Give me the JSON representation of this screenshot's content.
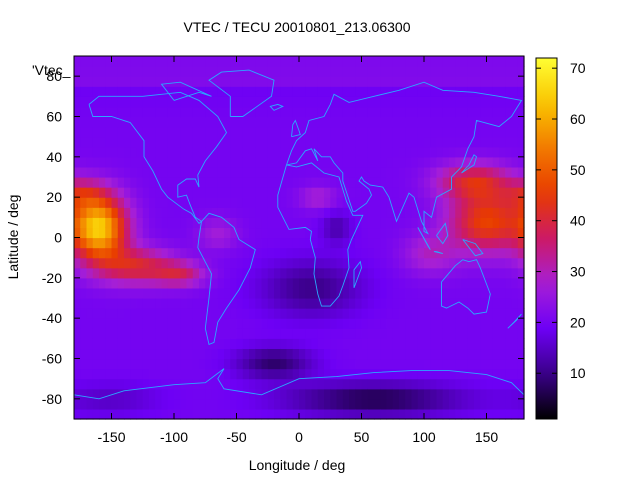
{
  "chart_data": {
    "type": "heatmap",
    "title": "VTEC / TECU 20010801_213.06300",
    "xlabel": "Longitude / deg",
    "ylabel": "Latitude / deg",
    "key_label": "'Vtec_",
    "xlim": [
      -180,
      180
    ],
    "ylim": [
      -90,
      90
    ],
    "xticks": [
      -150,
      -100,
      -50,
      0,
      50,
      100,
      150
    ],
    "yticks": [
      -80,
      -60,
      -40,
      -20,
      0,
      20,
      40,
      60,
      80
    ],
    "colorbar": {
      "range": [
        1,
        72
      ],
      "ticks": [
        10,
        20,
        30,
        40,
        50,
        60,
        70
      ],
      "palette": [
        "#000000",
        "#3a0088",
        "#6d00f5",
        "#a61fd6",
        "#cc1a66",
        "#e83a00",
        "#f27a00",
        "#f9c400",
        "#ffff33"
      ]
    },
    "grid": "72 x 36 cells (5 deg)",
    "features": [
      {
        "name": "pacific_anomaly",
        "lon": -165,
        "lat": 5,
        "peak": 70
      },
      {
        "name": "asia_pacific_anomaly",
        "lon": 150,
        "lat": 5,
        "peak": 52
      },
      {
        "name": "south_polar_trough",
        "lon": 100,
        "lat": -80,
        "min": 3
      }
    ],
    "coastline_color": "#2aa8ff"
  }
}
